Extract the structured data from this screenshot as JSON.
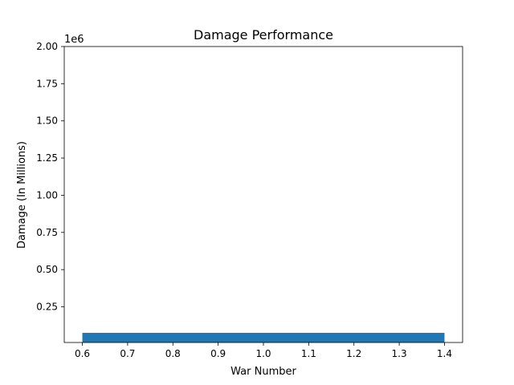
{
  "chart_data": {
    "type": "bar",
    "title": "Damage Performance",
    "xlabel": "War Number",
    "ylabel": "Damage (In Millions)",
    "offset_label": "1e6",
    "xlim": [
      0.56,
      1.44
    ],
    "ylim": [
      10000,
      2000000
    ],
    "x_ticks": [
      0.6,
      0.7,
      0.8,
      0.9,
      1.0,
      1.1,
      1.2,
      1.3,
      1.4
    ],
    "x_tick_labels": [
      "0.6",
      "0.7",
      "0.8",
      "0.9",
      "1.0",
      "1.1",
      "1.2",
      "1.3",
      "1.4"
    ],
    "y_ticks": [
      250000,
      500000,
      750000,
      1000000,
      1250000,
      1500000,
      1750000,
      2000000
    ],
    "y_tick_labels": [
      "0.25",
      "0.50",
      "0.75",
      "1.00",
      "1.25",
      "1.50",
      "1.75",
      "2.00"
    ],
    "bars": [
      {
        "x": 1,
        "width": 0.8,
        "value": 75000,
        "color": "#1f77b4"
      }
    ],
    "grid": false,
    "legend": "none"
  }
}
